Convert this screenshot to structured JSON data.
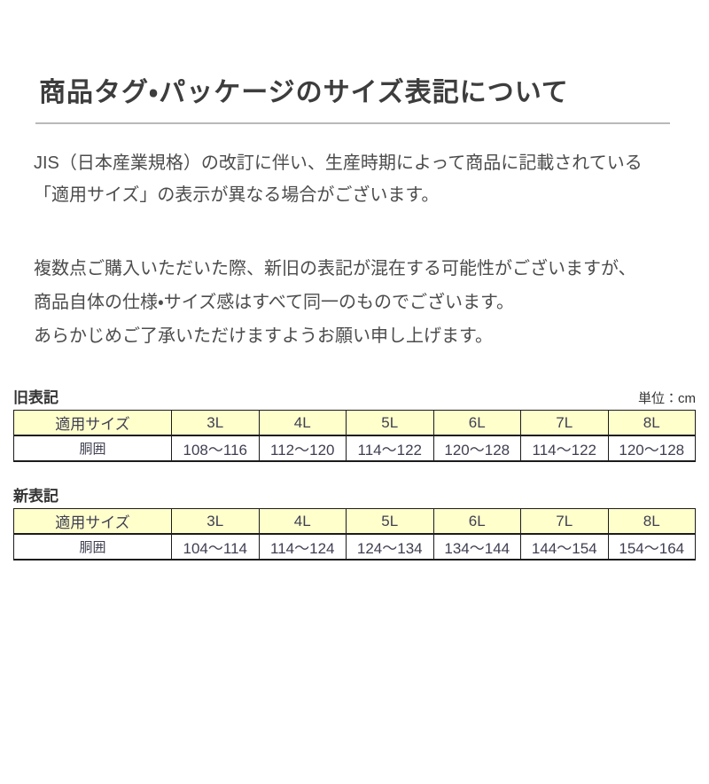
{
  "title": "商品タグ・パッケージのサイズ表記について",
  "intro": {
    "line1": "JIS（日本産業規格）の改訂に伴い、生産時期によって商品に記載されている",
    "line2": "「適用サイズ」の表示が異なる場合がございます。"
  },
  "notice": {
    "line1": "複数点ご購入いただいた際、新旧の表記が混在する可能性がございますが、",
    "line2": "商品自体の仕様・サイズ感はすべて同一のものでございます。",
    "line3": "あらかじめご了承いただけますようお願い申し上げます。"
  },
  "unit_label": "単位：cm",
  "old_table": {
    "label": "旧表記",
    "header": [
      "適用サイズ",
      "3L",
      "4L",
      "5L",
      "6L",
      "7L",
      "8L"
    ],
    "row": {
      "label": "胴囲",
      "values": [
        "108～116",
        "112～120",
        "114～122",
        "120～128",
        "114～122",
        "120～128"
      ]
    }
  },
  "new_table": {
    "label": "新表記",
    "header": [
      "適用サイズ",
      "3L",
      "4L",
      "5L",
      "6L",
      "7L",
      "8L"
    ],
    "row": {
      "label": "胴囲",
      "values": [
        "104～114",
        "114～124",
        "124～134",
        "134～144",
        "144～154",
        "154～164"
      ]
    }
  },
  "colors": {
    "table_header_bg": "#ffffcc",
    "table_border": "#1c1c1c",
    "title_underline": "#b9b9b9",
    "title_text": "#3d3d3d",
    "text": "#4c4c4c",
    "table_text": "#3f3f52"
  }
}
